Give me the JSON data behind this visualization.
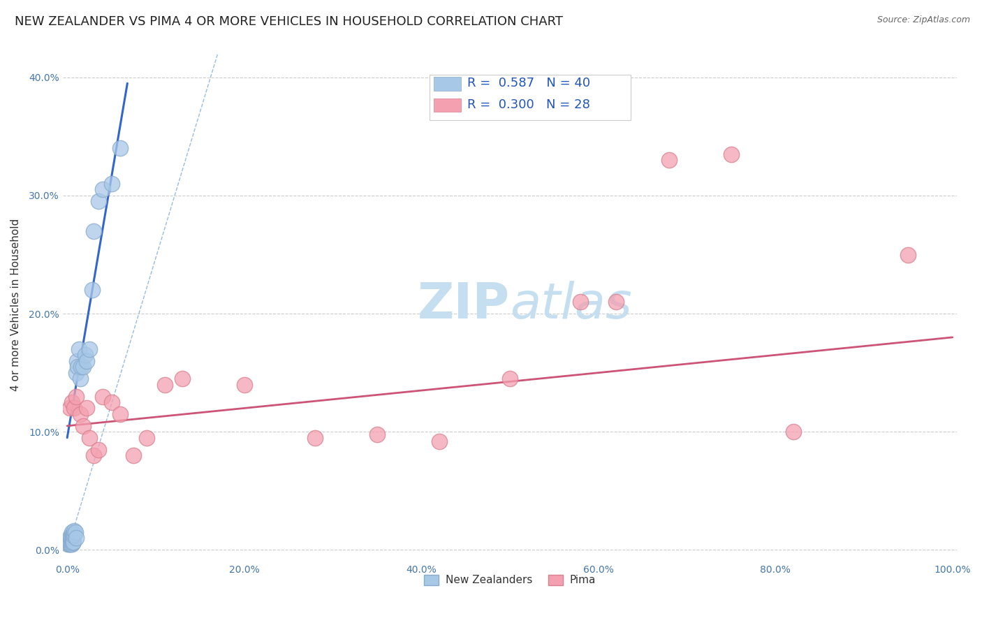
{
  "title": "NEW ZEALANDER VS PIMA 4 OR MORE VEHICLES IN HOUSEHOLD CORRELATION CHART",
  "source": "Source: ZipAtlas.com",
  "ylabel": "4 or more Vehicles in Household",
  "xlim": [
    -0.005,
    1.005
  ],
  "ylim": [
    -0.01,
    0.425
  ],
  "xticks": [
    0.0,
    0.2,
    0.4,
    0.6,
    0.8,
    1.0
  ],
  "xticklabels": [
    "0.0%",
    "20.0%",
    "40.0%",
    "60.0%",
    "80.0%",
    "100.0%"
  ],
  "yticks": [
    0.0,
    0.1,
    0.2,
    0.3,
    0.4
  ],
  "yticklabels": [
    "0.0%",
    "10.0%",
    "20.0%",
    "30.0%",
    "40.0%"
  ],
  "blue_scatter_color": "#a8c8e8",
  "blue_edge_color": "#88aacc",
  "pink_scatter_color": "#f4a0b0",
  "pink_edge_color": "#d88090",
  "blue_line_color": "#3366cc",
  "pink_line_color": "#cc5577",
  "dashed_line_color": "#99bbdd",
  "legend_r1": "R =  0.587",
  "legend_n1": "N = 40",
  "legend_r2": "R =  0.300",
  "legend_n2": "N = 28",
  "legend_label1": "New Zealanders",
  "legend_label2": "Pima",
  "blue_points_x": [
    0.001,
    0.002,
    0.002,
    0.003,
    0.003,
    0.003,
    0.004,
    0.004,
    0.004,
    0.004,
    0.005,
    0.005,
    0.005,
    0.005,
    0.005,
    0.006,
    0.006,
    0.006,
    0.007,
    0.007,
    0.008,
    0.008,
    0.009,
    0.01,
    0.01,
    0.011,
    0.012,
    0.013,
    0.015,
    0.016,
    0.018,
    0.02,
    0.022,
    0.025,
    0.028,
    0.03,
    0.035,
    0.04,
    0.05,
    0.06
  ],
  "blue_points_y": [
    0.005,
    0.005,
    0.008,
    0.005,
    0.007,
    0.01,
    0.005,
    0.007,
    0.01,
    0.012,
    0.005,
    0.007,
    0.009,
    0.012,
    0.015,
    0.006,
    0.01,
    0.013,
    0.007,
    0.012,
    0.013,
    0.016,
    0.015,
    0.01,
    0.15,
    0.16,
    0.155,
    0.17,
    0.145,
    0.155,
    0.155,
    0.165,
    0.16,
    0.17,
    0.22,
    0.27,
    0.295,
    0.305,
    0.31,
    0.34
  ],
  "pink_points_x": [
    0.003,
    0.005,
    0.008,
    0.01,
    0.015,
    0.018,
    0.022,
    0.025,
    0.03,
    0.035,
    0.04,
    0.05,
    0.06,
    0.075,
    0.09,
    0.11,
    0.13,
    0.2,
    0.28,
    0.35,
    0.42,
    0.5,
    0.58,
    0.62,
    0.68,
    0.75,
    0.82,
    0.95
  ],
  "pink_points_y": [
    0.12,
    0.125,
    0.12,
    0.13,
    0.115,
    0.105,
    0.12,
    0.095,
    0.08,
    0.085,
    0.13,
    0.125,
    0.115,
    0.08,
    0.095,
    0.14,
    0.145,
    0.14,
    0.095,
    0.098,
    0.092,
    0.145,
    0.21,
    0.21,
    0.33,
    0.335,
    0.1,
    0.25
  ],
  "blue_line_x": [
    0.0,
    0.068
  ],
  "blue_line_y": [
    0.095,
    0.395
  ],
  "pink_line_x": [
    0.0,
    1.0
  ],
  "pink_line_y": [
    0.105,
    0.18
  ],
  "dashed_line_x": [
    0.0,
    0.17
  ],
  "dashed_line_y": [
    0.0,
    0.42
  ],
  "background_color": "#ffffff",
  "grid_color": "#cccccc",
  "title_fontsize": 13,
  "axis_label_fontsize": 11,
  "tick_fontsize": 10,
  "legend_fontsize": 13,
  "watermark_zip": "ZIP",
  "watermark_atlas": "atlas",
  "watermark_color_zip": "#c5dff0",
  "watermark_color_atlas": "#c5dff0",
  "watermark_fontsize": 52
}
